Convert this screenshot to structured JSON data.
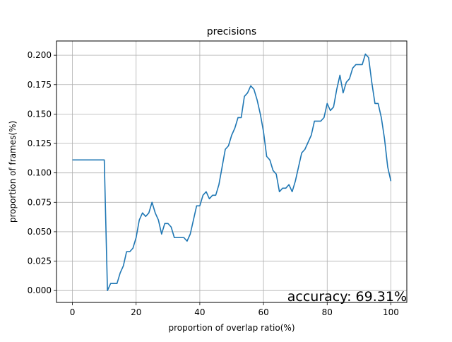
{
  "chart_data": {
    "type": "line",
    "title": "precisions",
    "xlabel": "proportion of overlap ratio(%)",
    "ylabel": "proportion of frames(%)",
    "annotation": "accuracy: 69.31%",
    "xlim": [
      -5,
      105
    ],
    "ylim": [
      -0.0101,
      0.2121
    ],
    "grid": true,
    "line_color": "#1f77b4",
    "x_ticks": [
      0,
      20,
      40,
      60,
      80,
      100
    ],
    "x_tick_labels": [
      "0",
      "20",
      "40",
      "60",
      "80",
      "100"
    ],
    "y_ticks": [
      0.0,
      0.025,
      0.05,
      0.075,
      0.1,
      0.125,
      0.15,
      0.175,
      0.2
    ],
    "y_tick_labels": [
      "0.000",
      "0.025",
      "0.050",
      "0.075",
      "0.100",
      "0.125",
      "0.150",
      "0.175",
      "0.200"
    ],
    "series": [
      {
        "x": [
          0,
          1,
          2,
          3,
          4,
          5,
          6,
          7,
          8,
          9,
          10,
          11,
          12,
          13,
          14,
          15,
          16,
          17,
          18,
          19,
          20,
          21,
          22,
          23,
          24,
          25,
          26,
          27,
          28,
          29,
          30,
          31,
          32,
          33,
          34,
          35,
          36,
          37,
          38,
          39,
          40,
          41,
          42,
          43,
          44,
          45,
          46,
          47,
          48,
          49,
          50,
          51,
          52,
          53,
          54,
          55,
          56,
          57,
          58,
          59,
          60,
          61,
          62,
          63,
          64,
          65,
          66,
          67,
          68,
          69,
          70,
          71,
          72,
          73,
          74,
          75,
          76,
          77,
          78,
          79,
          80,
          81,
          82,
          83,
          84,
          85,
          86,
          87,
          88,
          89,
          90,
          91,
          92,
          93,
          94,
          95,
          96,
          97,
          98,
          99,
          100
        ],
        "y": [
          0.111,
          0.111,
          0.111,
          0.111,
          0.111,
          0.111,
          0.111,
          0.111,
          0.111,
          0.111,
          0.111,
          0.0,
          0.006,
          0.006,
          0.006,
          0.015,
          0.021,
          0.033,
          0.033,
          0.036,
          0.045,
          0.06,
          0.066,
          0.063,
          0.066,
          0.075,
          0.066,
          0.06,
          0.048,
          0.057,
          0.057,
          0.054,
          0.045,
          0.045,
          0.045,
          0.045,
          0.042,
          0.048,
          0.06,
          0.072,
          0.072,
          0.081,
          0.084,
          0.078,
          0.081,
          0.081,
          0.09,
          0.105,
          0.12,
          0.123,
          0.132,
          0.138,
          0.147,
          0.147,
          0.165,
          0.168,
          0.174,
          0.171,
          0.162,
          0.15,
          0.135,
          0.114,
          0.111,
          0.102,
          0.099,
          0.084,
          0.087,
          0.087,
          0.09,
          0.084,
          0.093,
          0.105,
          0.117,
          0.12,
          0.126,
          0.132,
          0.144,
          0.144,
          0.144,
          0.147,
          0.159,
          0.153,
          0.156,
          0.171,
          0.183,
          0.168,
          0.177,
          0.18,
          0.189,
          0.192,
          0.192,
          0.192,
          0.201,
          0.198,
          0.177,
          0.159,
          0.159,
          0.147,
          0.129,
          0.105,
          0.093
        ]
      }
    ]
  }
}
